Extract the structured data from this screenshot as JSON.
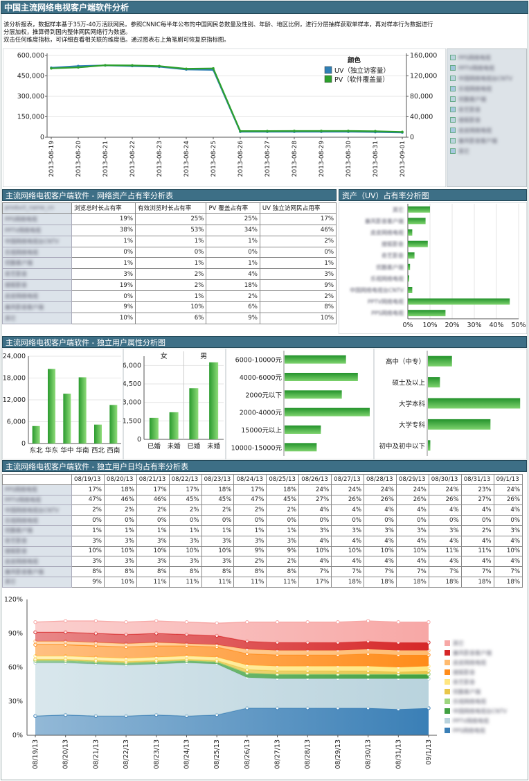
{
  "title": "中国主流网络电视客户端软件分析",
  "description": [
    "该分析报表，数据样本基于35万-40万活跃网民。参照CNNIC每半年公布的中国网民总数量及性别、年龄、地区比例，进行分层抽样获取单样本，再对样本行为数据进行",
    "分层加权，推算得到国内整体网民网络行为数据。",
    "双击任何维度指标，可详细查看相关联的维度值。通过图表右上角笔刷可恢复原指标图。"
  ],
  "software_names": [
    "PPS网络电视",
    "PPTV网络电视",
    "中国网络电视台CNTV",
    "乐视网络电视",
    "优酷客户端",
    "奇艺影音",
    "搜狐影音",
    "皮皮网络电视",
    "暴风影音客户端",
    "其它"
  ],
  "top_chart": {
    "chart_data": {
      "type": "line",
      "x": [
        "2013-08-19",
        "2013-08-20",
        "2013-08-21",
        "2013-08-22",
        "2013-08-23",
        "2013-08-24",
        "2013-08-25",
        "2013-08-26",
        "2013-08-27",
        "2013-08-28",
        "2013-08-29",
        "2013-08-30",
        "2013-08-31",
        "2013-09-01"
      ],
      "left_ticks": [
        "600,000",
        "450,000",
        "300,000",
        "150,000",
        "0"
      ],
      "right_ticks": [
        "160,000",
        "120,000",
        "80,000",
        "40,000",
        "0"
      ],
      "ylim_left": [
        0,
        600000
      ],
      "ylim_right": [
        0,
        160000
      ],
      "legend_title": "颜色",
      "series": [
        {
          "name": "UV（独立访客量）",
          "color": "#2f7fb5",
          "values": [
            510000,
            522000,
            527000,
            522000,
            517000,
            497000,
            494000,
            40000,
            40000,
            40000,
            40000,
            40000,
            38000,
            35000
          ]
        },
        {
          "name": "PV（软件覆盖量）",
          "color": "#2ca02c",
          "values": [
            505000,
            512000,
            528000,
            527000,
            522000,
            502000,
            505000,
            45000,
            45000,
            46000,
            46000,
            46000,
            44000,
            39000
          ]
        }
      ]
    }
  },
  "asset_table": {
    "header": "主流网络电视客户端软件 - 网络资产占有率分析表",
    "columns": [
      "product_name_cn",
      "浏览总时长占有率",
      "有效浏览时长占有率",
      "PV 覆盖占有率",
      "UV 独立访网民占用率"
    ],
    "rows": [
      [
        "19%",
        "25%",
        "25%",
        "17%"
      ],
      [
        "38%",
        "53%",
        "34%",
        "46%"
      ],
      [
        "1%",
        "1%",
        "1%",
        "2%"
      ],
      [
        "0%",
        "0%",
        "0%",
        "0%"
      ],
      [
        "1%",
        "1%",
        "1%",
        "1%"
      ],
      [
        "3%",
        "2%",
        "4%",
        "3%"
      ],
      [
        "19%",
        "2%",
        "18%",
        "9%"
      ],
      [
        "0%",
        "1%",
        "2%",
        "2%"
      ],
      [
        "9%",
        "10%",
        "6%",
        "8%"
      ],
      [
        "10%",
        "6%",
        "9%",
        "10%"
      ]
    ]
  },
  "uv_share": {
    "header": "资产（UV）占有率分析图",
    "chart_data": {
      "type": "bar",
      "categories_order": [
        "其它",
        "暴风影音客户端",
        "皮皮网络电视",
        "搜狐影音",
        "奇艺影音",
        "优酷客户端",
        "乐视网络电视",
        "中国网络电视台CNTV",
        "PPTV网络电视",
        "PPS网络电视"
      ],
      "values": [
        10,
        8,
        2,
        9,
        3,
        1,
        0,
        2,
        46,
        17
      ],
      "ticks": [
        "0%",
        "10%",
        "20%",
        "30%",
        "40%",
        "50%"
      ],
      "xlim": [
        0,
        50
      ]
    }
  },
  "attr_header": "主流网络电视客户端软件 - 独立用户属性分析图",
  "region_chart": {
    "chart_data": {
      "type": "bar",
      "categories": [
        "东北",
        "华东",
        "华中",
        "华南",
        "西北",
        "西南"
      ],
      "values": [
        4800,
        20500,
        13700,
        18200,
        5200,
        10600
      ],
      "ticks": [
        "24,000",
        "18,000",
        "12,000",
        "6,000",
        "0"
      ],
      "ylim": [
        0,
        24000
      ]
    }
  },
  "gender_chart": {
    "chart_data": {
      "type": "bar",
      "groups": [
        "女",
        "男"
      ],
      "categories": [
        "已婚",
        "未婚",
        "已婚",
        "未婚"
      ],
      "values": [
        1750,
        2200,
        4150,
        6250
      ],
      "ticks": [
        "6,000",
        "4,500",
        "3,000",
        "1,500",
        "0"
      ],
      "ylim": [
        0,
        6750
      ]
    }
  },
  "income_chart": {
    "chart_data": {
      "type": "bar",
      "categories": [
        "6000-10000元",
        "4000-6000元",
        "2000元以下",
        "2000-4000元",
        "15000元以上",
        "10000-15000元"
      ],
      "values": [
        88,
        105,
        82,
        122,
        52,
        46
      ],
      "xlim": [
        0,
        125
      ]
    }
  },
  "edu_chart": {
    "chart_data": {
      "type": "bar",
      "categories": [
        "高中（中专）",
        "硕士及以上",
        "大学本科",
        "大学专科",
        "初中及初中以下"
      ],
      "values": [
        30,
        15,
        115,
        78,
        3
      ],
      "xlim": [
        0,
        120
      ]
    }
  },
  "daily_table": {
    "header": "主流网络电视客户端软件 - 独立用户日均占有率分析表",
    "columns": [
      "08/19/13",
      "08/20/13",
      "08/21/13",
      "08/22/13",
      "08/23/13",
      "08/24/13",
      "08/25/13",
      "08/26/13",
      "08/27/13",
      "08/28/13",
      "08/29/13",
      "08/30/13",
      "08/31/13",
      "09/1/13"
    ],
    "rows": [
      [
        "17%",
        "18%",
        "17%",
        "17%",
        "18%",
        "17%",
        "18%",
        "24%",
        "24%",
        "24%",
        "24%",
        "24%",
        "23%",
        "24%"
      ],
      [
        "47%",
        "46%",
        "46%",
        "45%",
        "45%",
        "47%",
        "45%",
        "27%",
        "26%",
        "26%",
        "26%",
        "26%",
        "27%",
        "26%"
      ],
      [
        "2%",
        "2%",
        "2%",
        "2%",
        "2%",
        "2%",
        "2%",
        "4%",
        "4%",
        "4%",
        "4%",
        "4%",
        "4%",
        "4%"
      ],
      [
        "0%",
        "0%",
        "0%",
        "0%",
        "0%",
        "0%",
        "0%",
        "0%",
        "0%",
        "0%",
        "0%",
        "0%",
        "0%",
        "0%"
      ],
      [
        "1%",
        "1%",
        "1%",
        "1%",
        "1%",
        "1%",
        "1%",
        "3%",
        "3%",
        "3%",
        "3%",
        "3%",
        "2%",
        "3%"
      ],
      [
        "3%",
        "3%",
        "3%",
        "3%",
        "3%",
        "3%",
        "3%",
        "4%",
        "4%",
        "4%",
        "4%",
        "4%",
        "4%",
        "4%"
      ],
      [
        "10%",
        "10%",
        "10%",
        "10%",
        "10%",
        "9%",
        "9%",
        "10%",
        "10%",
        "10%",
        "10%",
        "11%",
        "11%",
        "10%"
      ],
      [
        "3%",
        "3%",
        "3%",
        "3%",
        "3%",
        "2%",
        "2%",
        "4%",
        "4%",
        "4%",
        "4%",
        "4%",
        "4%",
        "4%"
      ],
      [
        "8%",
        "8%",
        "8%",
        "8%",
        "8%",
        "8%",
        "8%",
        "7%",
        "7%",
        "7%",
        "7%",
        "7%",
        "7%",
        "7%"
      ],
      [
        "9%",
        "10%",
        "11%",
        "11%",
        "11%",
        "11%",
        "11%",
        "17%",
        "18%",
        "18%",
        "18%",
        "18%",
        "18%",
        "18%"
      ]
    ]
  },
  "area_chart": {
    "chart_data": {
      "type": "area",
      "x": [
        "08/19/13",
        "08/20/13",
        "08/21/13",
        "08/22/13",
        "08/23/13",
        "08/24/13",
        "08/25/13",
        "08/26/13",
        "08/27/13",
        "08/28/13",
        "08/29/13",
        "08/30/13",
        "08/31/13",
        "09/1/13"
      ],
      "ticks": [
        "120%",
        "90%",
        "60%",
        "30%",
        "0%"
      ],
      "ylim": [
        0,
        120
      ],
      "stacking": "cumulative",
      "series_order_bottom_to_top": [
        "PPS网络电视",
        "PPTV网络电视",
        "中国网络电视台CNTV",
        "乐视网络电视",
        "优酷客户端",
        "奇艺影音",
        "搜狐影音",
        "皮皮网络电视",
        "暴风影音客户端",
        "其它"
      ],
      "colors": [
        "#3a7fb6",
        "#b9d3dd",
        "#41a041",
        "#9ed67f",
        "#e8c64a",
        "#ffe680",
        "#ff8c1a",
        "#ffbb70",
        "#d62728",
        "#f7a8a6"
      ]
    }
  },
  "legend_colors": [
    "#b9d3dd",
    "#9ec5db",
    "#b9d3dd",
    "#a6c8df",
    "#b9d3dd",
    "#a6c8df",
    "#b9d3dd",
    "#a6c8df",
    "#b9d3dd",
    "#a6c8df"
  ],
  "area_legend_colors": [
    "#f7a8a6",
    "#d62728",
    "#ffbb70",
    "#ff8c1a",
    "#ffe680",
    "#e8c64a",
    "#9ed67f",
    "#41a041",
    "#b9d3dd",
    "#3a7fb6"
  ]
}
